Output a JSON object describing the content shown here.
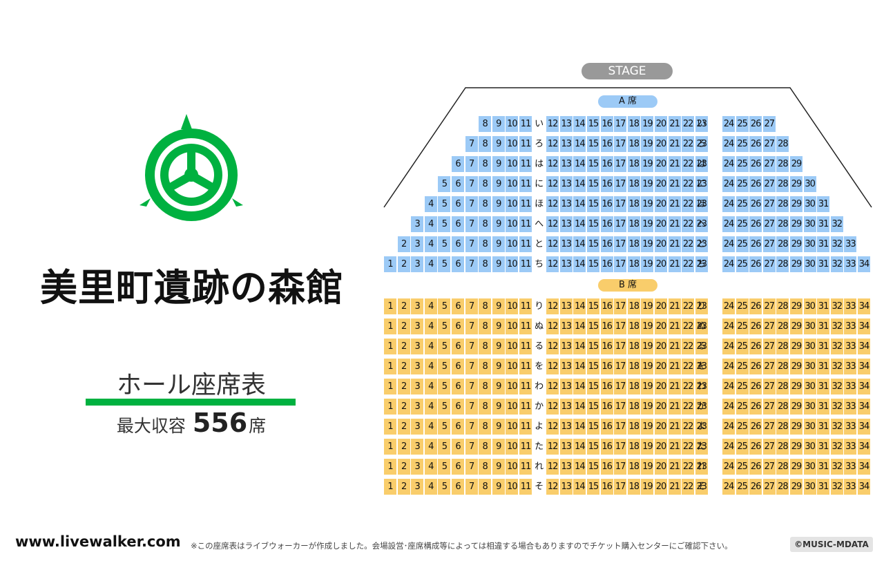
{
  "venue": {
    "name": "美里町遺跡の森館",
    "hall_title": "ホール座席表",
    "capacity_label": "最大収容",
    "capacity_value": "556",
    "capacity_unit": "席"
  },
  "stage_label": "STAGE",
  "blocks": [
    {
      "id": "a",
      "label": "A 席",
      "rows": [
        {
          "label": "い",
          "start": 8,
          "end": 27
        },
        {
          "label": "ろ",
          "start": 7,
          "end": 28
        },
        {
          "label": "は",
          "start": 6,
          "end": 29
        },
        {
          "label": "に",
          "start": 5,
          "end": 30
        },
        {
          "label": "ほ",
          "start": 4,
          "end": 31
        },
        {
          "label": "へ",
          "start": 3,
          "end": 32
        },
        {
          "label": "と",
          "start": 2,
          "end": 33
        },
        {
          "label": "ち",
          "start": 1,
          "end": 34
        }
      ]
    },
    {
      "id": "b",
      "label": "B 席",
      "rows": [
        {
          "label": "り",
          "start": 1,
          "end": 34
        },
        {
          "label": "ぬ",
          "start": 1,
          "end": 34
        },
        {
          "label": "る",
          "start": 1,
          "end": 34
        },
        {
          "label": "を",
          "start": 1,
          "end": 34
        },
        {
          "label": "わ",
          "start": 1,
          "end": 34
        },
        {
          "label": "か",
          "start": 1,
          "end": 34
        },
        {
          "label": "よ",
          "start": 1,
          "end": 34
        },
        {
          "label": "た",
          "start": 1,
          "end": 34
        },
        {
          "label": "れ",
          "start": 1,
          "end": 34
        },
        {
          "label": "そ",
          "start": 1,
          "end": 34
        }
      ]
    }
  ],
  "colors": {
    "emblem": "#00b140",
    "block_a": "#9ccaf6",
    "block_b": "#f9cd6b",
    "stage": "#999999"
  },
  "footer": {
    "site": "www.livewalker.com",
    "note": "※この座席表はライブウォーカーが作成しました。会場設営･座席構成等によっては相違する場合もありますのでチケット購入センターにご確認下さい。",
    "copyright": "©MUSIC-MDATA"
  }
}
